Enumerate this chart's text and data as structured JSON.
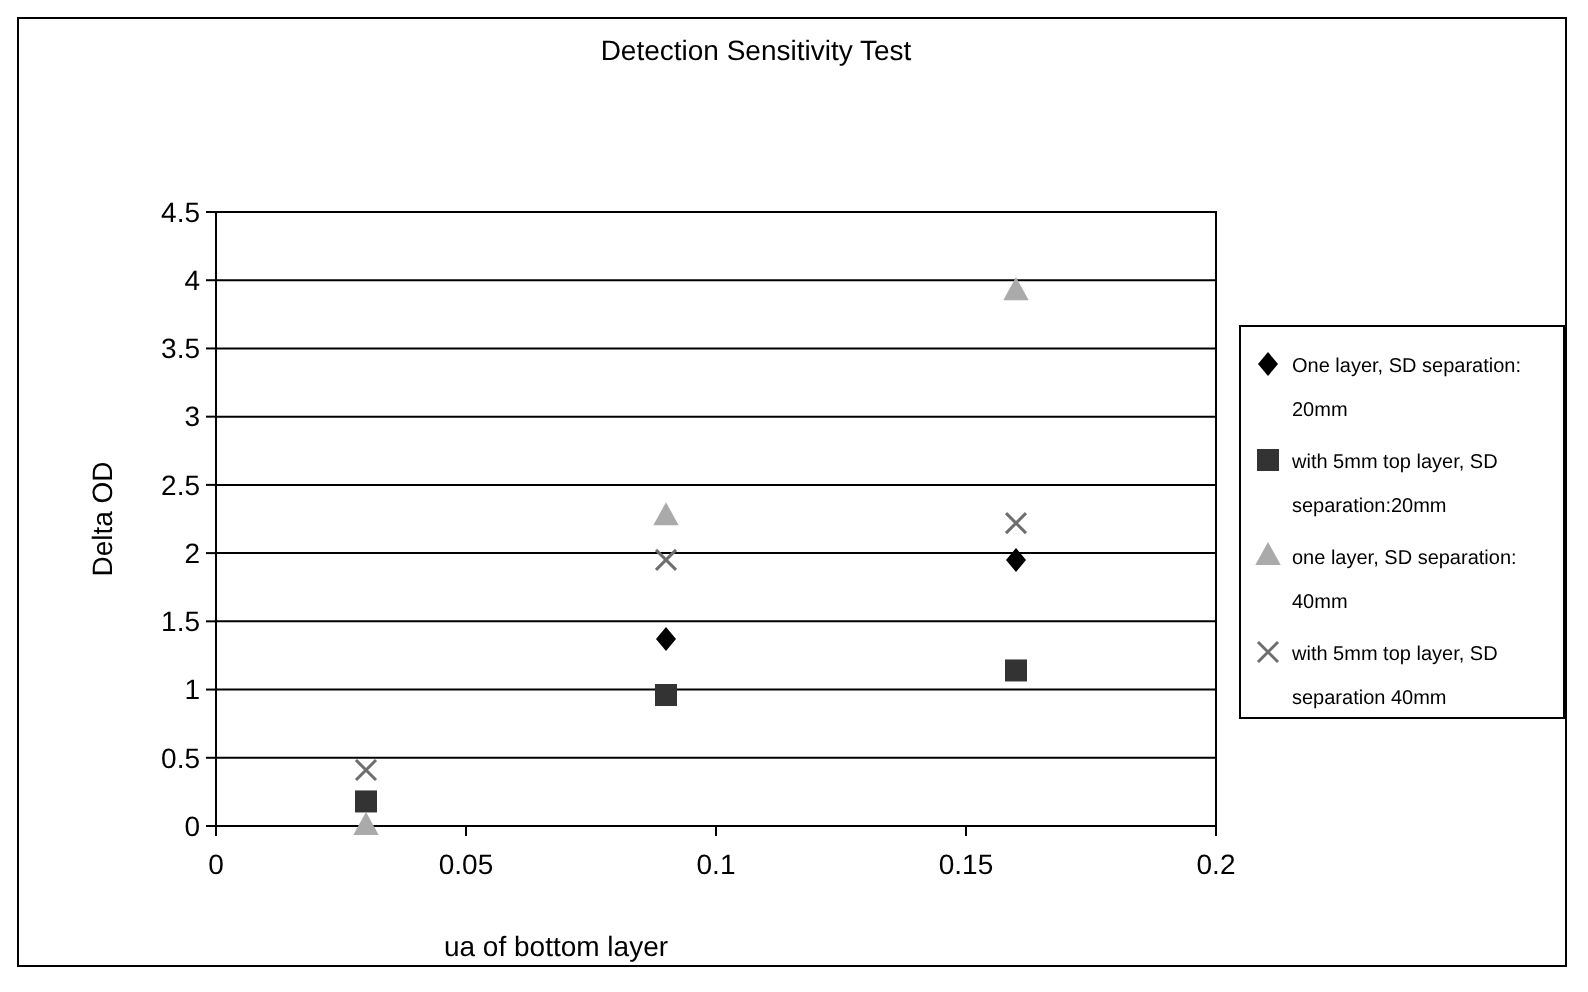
{
  "chart_data": {
    "type": "scatter",
    "title": "Detection Sensitivity Test",
    "xlabel": "ua of bottom layer",
    "ylabel": "Delta OD",
    "x": [
      0.03,
      0.09,
      0.16
    ],
    "series": [
      {
        "name": "One layer, SD separation: 20mm",
        "color": "#000000",
        "marker": "diamond",
        "values": [
          null,
          1.37,
          1.95
        ]
      },
      {
        "name": "with 5mm top layer, SD separation:20mm",
        "color": "#333333",
        "marker": "square",
        "values": [
          0.18,
          0.96,
          1.14
        ]
      },
      {
        "name": "one layer, SD separation: 40mm",
        "color": "#aaaaaa",
        "marker": "triangle",
        "values": [
          0,
          2.27,
          3.92
        ]
      },
      {
        "name": "with 5mm top layer, SD separation 40mm",
        "color": "#6e6e6e",
        "marker": "cross",
        "values": [
          0.41,
          1.95,
          2.22
        ]
      }
    ],
    "xlim": [
      0,
      0.2
    ],
    "xticks": [
      0,
      0.05,
      0.1,
      0.15,
      0.2
    ],
    "ylim": [
      0,
      4.5
    ],
    "yticks": [
      0,
      0.5,
      1,
      1.5,
      2,
      2.5,
      3,
      3.5,
      4,
      4.5
    ],
    "grid": "y",
    "legend": "right"
  }
}
